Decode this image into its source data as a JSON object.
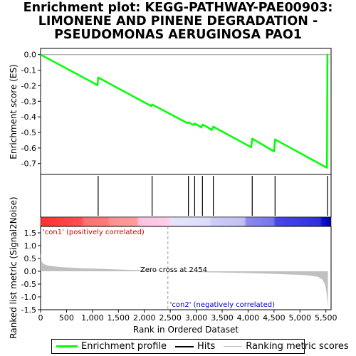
{
  "title_lines": [
    "Enrichment plot: KEGG-PATHWAY-PAE00903:",
    "LIMONENE AND PINENE DEGRADATION -",
    "PSEUDOMONAS AERUGINOSA PAO1"
  ],
  "colors": {
    "es_line": "#00ff00",
    "hits": "#000000",
    "metric_fill": "#c0c0c0",
    "pos_label": "#cc0000",
    "neg_label": "#0000cc",
    "zero_cross_line": "#999999"
  },
  "labels": {
    "pos_corr": "'con1' (positively correlated)",
    "neg_corr": "'con2' (negatively correlated)",
    "zero_cross": "Zero cross at 2454"
  },
  "legend": {
    "enrichment": "Enrichment profile",
    "hits": "Hits",
    "ranking": "Ranking metric scores"
  },
  "chart_data": {
    "type": "line",
    "xlabel": "Rank in Ordered Dataset",
    "xlim": [
      0,
      5600
    ],
    "x_ticks": [
      "0",
      "500",
      "1,000",
      "1,500",
      "2,000",
      "2,500",
      "3,000",
      "3,500",
      "4,000",
      "4,500",
      "5,000",
      "5,500"
    ],
    "x_tick_values": [
      0,
      500,
      1000,
      1500,
      2000,
      2500,
      3000,
      3500,
      4000,
      4500,
      5000,
      5500
    ],
    "zero_cross": 2454,
    "n_genes": 5540,
    "es_panel": {
      "ylabel": "Enrichment score (ES)",
      "ylim": [
        -0.77,
        0.04
      ],
      "y_ticks": [
        "0.0",
        "-0.1",
        "-0.2",
        "-0.3",
        "-0.4",
        "-0.5",
        "-0.6",
        "-0.7"
      ],
      "y_tick_values": [
        0.0,
        -0.1,
        -0.2,
        -0.3,
        -0.4,
        -0.5,
        -0.6,
        -0.7
      ],
      "profile_x": [
        0,
        1100,
        1110,
        2130,
        2150,
        2830,
        2850,
        2950,
        2970,
        3000,
        3100,
        3120,
        3200,
        3300,
        3330,
        4060,
        4080,
        4500,
        4520,
        5520,
        5530,
        5540
      ],
      "profile_y": [
        0.0,
        -0.196,
        -0.147,
        -0.33,
        -0.32,
        -0.44,
        -0.435,
        -0.452,
        -0.443,
        -0.448,
        -0.468,
        -0.45,
        -0.462,
        -0.485,
        -0.463,
        -0.595,
        -0.54,
        -0.622,
        -0.545,
        -0.727,
        0.0,
        0.0
      ]
    },
    "hits_positions": [
      1110,
      2150,
      2850,
      2970,
      3120,
      3330,
      4080,
      4520,
      5530
    ],
    "metric_panel": {
      "ylabel": "Ranked list metric (Signal2Noise)",
      "ylim": [
        -1.5,
        1.75
      ],
      "y_ticks": [
        "1.5",
        "1.0",
        "0.5",
        "0.0",
        "-0.5",
        "-1.0",
        "-1.5"
      ],
      "y_tick_values": [
        1.5,
        1.0,
        0.5,
        0.0,
        -0.5,
        -1.0,
        -1.5
      ],
      "curve_x": [
        0,
        20,
        60,
        150,
        300,
        500,
        800,
        1100,
        1500,
        2000,
        2454,
        3000,
        3500,
        4000,
        4500,
        5000,
        5200,
        5350,
        5430,
        5480,
        5510,
        5530,
        5540
      ],
      "curve_y": [
        0.72,
        0.38,
        0.28,
        0.22,
        0.18,
        0.15,
        0.12,
        0.1,
        0.07,
        0.04,
        0.0,
        -0.03,
        -0.05,
        -0.07,
        -0.1,
        -0.14,
        -0.17,
        -0.22,
        -0.32,
        -0.5,
        -0.8,
        -1.2,
        -1.45
      ]
    }
  }
}
